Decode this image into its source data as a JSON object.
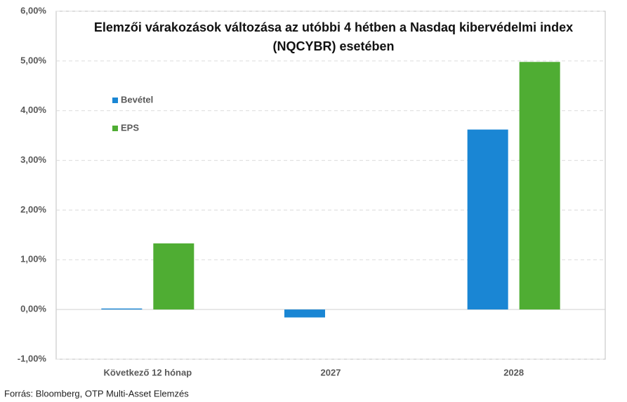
{
  "chart_data": {
    "type": "bar",
    "title": "Elemzői várakozások változása az utóbbi 4 hétben a Nasdaq kibervédelmi index\n(NQCYBR) esetében",
    "categories": [
      "Következő 12 hónap",
      "2027",
      "2028"
    ],
    "series": [
      {
        "name": "Bevétel",
        "color": "#1a86d4",
        "values": [
          0.02,
          -0.16,
          3.62
        ]
      },
      {
        "name": "EPS",
        "color": "#4fad33",
        "values": [
          1.33,
          0,
          4.98
        ]
      }
    ],
    "ylim": [
      -1,
      6
    ],
    "yticks": [
      {
        "value": -1,
        "label": "-1,00%"
      },
      {
        "value": 0,
        "label": "0,00%"
      },
      {
        "value": 1,
        "label": "1,00%"
      },
      {
        "value": 2,
        "label": "2,00%"
      },
      {
        "value": 3,
        "label": "3,00%"
      },
      {
        "value": 4,
        "label": "4,00%"
      },
      {
        "value": 5,
        "label": "5,00%"
      },
      {
        "value": 6,
        "label": "6,00%"
      }
    ],
    "grid": true,
    "source": "Forrás: Bloomberg, OTP Multi-Asset Elemzés"
  }
}
